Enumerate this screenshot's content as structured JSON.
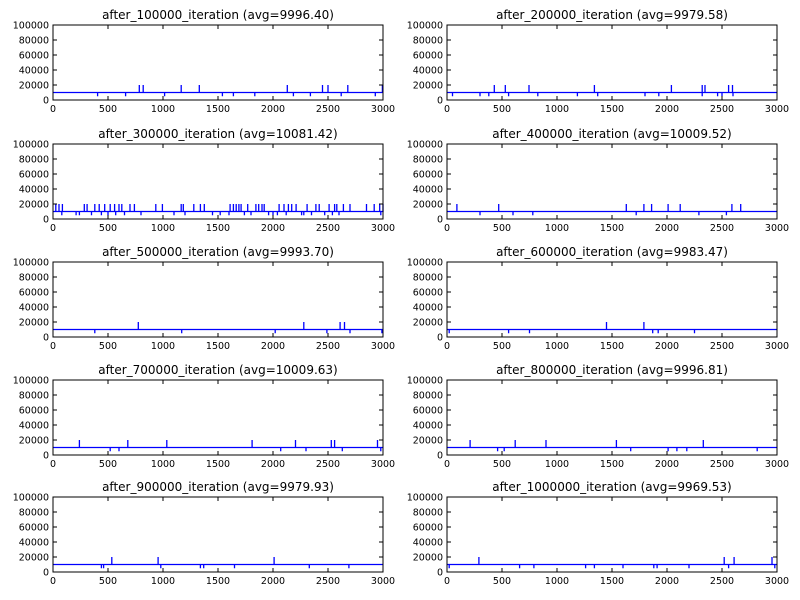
{
  "colors": {
    "series": "#0000ff",
    "axes": "#000000",
    "background": "#ffffff"
  },
  "chart_data": [
    {
      "type": "line",
      "title": "after_100000_iteration (avg=9996.40)",
      "xlim": [
        0,
        3000
      ],
      "ylim": [
        0,
        100000
      ],
      "xticks": [
        "0",
        "500",
        "1000",
        "1500",
        "2000",
        "2500",
        "3000"
      ],
      "yticks": [
        "0",
        "20000",
        "40000",
        "60000",
        "80000",
        "100000"
      ],
      "grid": false,
      "series": [
        {
          "baseline": 10000,
          "spikes_high": [
            785,
            820,
            1165,
            1330,
            2130,
            2450,
            2500,
            2680,
            2995
          ],
          "spikes_low": [
            405,
            660,
            1015,
            1540,
            1640,
            1835,
            2185,
            2340,
            2620,
            2930
          ]
        }
      ]
    },
    {
      "type": "line",
      "title": "after_200000_iteration (avg=9979.58)",
      "xlim": [
        0,
        3000
      ],
      "ylim": [
        0,
        100000
      ],
      "xticks": [
        "0",
        "500",
        "1000",
        "1500",
        "2000",
        "2500",
        "3000"
      ],
      "yticks": [
        "0",
        "20000",
        "40000",
        "60000",
        "80000",
        "100000"
      ],
      "grid": false,
      "series": [
        {
          "baseline": 10000,
          "spikes_high": [
            430,
            530,
            745,
            1340,
            2040,
            2320,
            2345,
            2560,
            2595
          ],
          "spikes_low": [
            50,
            300,
            380,
            560,
            825,
            1185,
            1370,
            1800,
            1925,
            2320,
            2460,
            2500,
            2600
          ]
        }
      ]
    },
    {
      "type": "line",
      "title": "after_300000_iteration (avg=10081.42)",
      "xlim": [
        0,
        3000
      ],
      "ylim": [
        0,
        100000
      ],
      "xticks": [
        "0",
        "500",
        "1000",
        "1500",
        "2000",
        "2500",
        "3000"
      ],
      "yticks": [
        "0",
        "20000",
        "40000",
        "60000",
        "80000",
        "100000"
      ],
      "grid": false,
      "series": [
        {
          "baseline": 10000,
          "spikes_high": [
            25,
            55,
            85,
            285,
            310,
            380,
            420,
            470,
            520,
            560,
            600,
            625,
            700,
            740,
            935,
            995,
            1165,
            1185,
            1280,
            1340,
            1375,
            1610,
            1640,
            1665,
            1690,
            1710,
            1770,
            1845,
            1870,
            1900,
            1920,
            2055,
            2100,
            2140,
            2170,
            2210,
            2310,
            2390,
            2420,
            2510,
            2560,
            2580,
            2640,
            2700,
            2850,
            2920,
            2970,
            3000
          ],
          "spikes_low": [
            80,
            210,
            240,
            350,
            440,
            500,
            570,
            650,
            800,
            1100,
            1200,
            1450,
            1520,
            1600,
            1740,
            1800,
            1960,
            2000,
            2040,
            2120,
            2260,
            2280,
            2350,
            2470,
            2540,
            2600,
            2980
          ]
        }
      ]
    },
    {
      "type": "line",
      "title": "after_400000_iteration (avg=10009.52)",
      "xlim": [
        0,
        3000
      ],
      "ylim": [
        0,
        100000
      ],
      "xticks": [
        "0",
        "500",
        "1000",
        "1500",
        "2000",
        "2500",
        "3000"
      ],
      "yticks": [
        "0",
        "20000",
        "40000",
        "60000",
        "80000",
        "100000"
      ],
      "grid": false,
      "series": [
        {
          "baseline": 10000,
          "spikes_high": [
            90,
            470,
            1630,
            1790,
            1860,
            2010,
            2120,
            2590,
            2670
          ],
          "spikes_low": [
            300,
            600,
            780,
            1720,
            2290,
            2540
          ]
        }
      ]
    },
    {
      "type": "line",
      "title": "after_500000_iteration (avg=9993.70)",
      "xlim": [
        0,
        3000
      ],
      "ylim": [
        0,
        100000
      ],
      "xticks": [
        "0",
        "500",
        "1000",
        "1500",
        "2000",
        "2500",
        "3000"
      ],
      "yticks": [
        "0",
        "20000",
        "40000",
        "60000",
        "80000",
        "100000"
      ],
      "grid": false,
      "series": [
        {
          "baseline": 10000,
          "spikes_high": [
            775,
            2280,
            2610,
            2650
          ],
          "spikes_low": [
            380,
            1170,
            2020,
            2490,
            2700,
            2990
          ]
        }
      ]
    },
    {
      "type": "line",
      "title": "after_600000_iteration (avg=9983.47)",
      "xlim": [
        0,
        3000
      ],
      "ylim": [
        0,
        100000
      ],
      "xticks": [
        "0",
        "500",
        "1000",
        "1500",
        "2000",
        "2500",
        "3000"
      ],
      "yticks": [
        "0",
        "20000",
        "40000",
        "60000",
        "80000",
        "100000"
      ],
      "grid": false,
      "series": [
        {
          "baseline": 10000,
          "spikes_high": [
            1450,
            1790
          ],
          "spikes_low": [
            20,
            560,
            750,
            1870,
            1920,
            2250
          ]
        }
      ]
    },
    {
      "type": "line",
      "title": "after_700000_iteration (avg=10009.63)",
      "xlim": [
        0,
        3000
      ],
      "ylim": [
        0,
        100000
      ],
      "xticks": [
        "0",
        "500",
        "1000",
        "1500",
        "2000",
        "2500",
        "3000"
      ],
      "yticks": [
        "0",
        "20000",
        "40000",
        "60000",
        "80000",
        "100000"
      ],
      "grid": false,
      "series": [
        {
          "baseline": 10000,
          "spikes_high": [
            240,
            680,
            1035,
            1810,
            2205,
            2530,
            2560,
            2950
          ],
          "spikes_low": [
            520,
            600,
            2070,
            2300,
            2630,
            2980
          ]
        }
      ]
    },
    {
      "type": "line",
      "title": "after_800000_iteration (avg=9996.81)",
      "xlim": [
        0,
        3000
      ],
      "ylim": [
        0,
        100000
      ],
      "xticks": [
        "0",
        "500",
        "1000",
        "1500",
        "2000",
        "2500",
        "3000"
      ],
      "yticks": [
        "0",
        "20000",
        "40000",
        "60000",
        "80000",
        "100000"
      ],
      "grid": false,
      "series": [
        {
          "baseline": 10000,
          "spikes_high": [
            210,
            620,
            900,
            1540,
            2330
          ],
          "spikes_low": [
            460,
            520,
            1670,
            2010,
            2090,
            2180,
            2820
          ]
        }
      ]
    },
    {
      "type": "line",
      "title": "after_900000_iteration (avg=9979.93)",
      "xlim": [
        0,
        3000
      ],
      "ylim": [
        0,
        100000
      ],
      "xticks": [
        "0",
        "500",
        "1000",
        "1500",
        "2000",
        "2500",
        "3000"
      ],
      "yticks": [
        "0",
        "20000",
        "40000",
        "60000",
        "80000",
        "100000"
      ],
      "grid": false,
      "series": [
        {
          "baseline": 10000,
          "spikes_high": [
            535,
            955,
            2010
          ],
          "spikes_low": [
            440,
            460,
            980,
            1340,
            1370,
            1650,
            2330,
            2690
          ]
        }
      ]
    },
    {
      "type": "line",
      "title": "after_1000000_iteration (avg=9969.53)",
      "xlim": [
        0,
        3000
      ],
      "ylim": [
        0,
        100000
      ],
      "xticks": [
        "0",
        "500",
        "1000",
        "1500",
        "2000",
        "2500",
        "3000"
      ],
      "yticks": [
        "0",
        "20000",
        "40000",
        "60000",
        "80000",
        "100000"
      ],
      "grid": false,
      "series": [
        {
          "baseline": 10000,
          "spikes_high": [
            290,
            2520,
            2610,
            2955
          ],
          "spikes_low": [
            20,
            660,
            790,
            1260,
            1340,
            1600,
            1880,
            1910,
            2200,
            2560,
            2980
          ]
        }
      ]
    }
  ]
}
